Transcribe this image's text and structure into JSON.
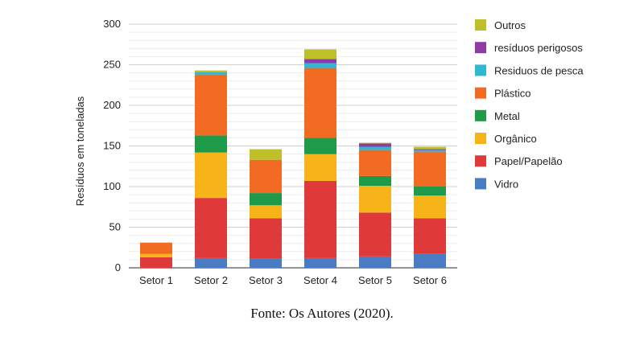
{
  "chart_data": {
    "type": "bar",
    "stacked": true,
    "categories": [
      "Setor 1",
      "Setor 2",
      "Setor 3",
      "Setor 4",
      "Setor 5",
      "Setor 6"
    ],
    "ylabel": "Resíduos em toneladas",
    "xlabel": "",
    "ylim": [
      0,
      300
    ],
    "yticks": [
      0,
      50,
      100,
      150,
      200,
      250,
      300
    ],
    "grid": true,
    "legend_position": "right",
    "series": [
      {
        "name": "Vidro",
        "color": "#4a7cc4",
        "values": [
          0,
          12,
          11,
          12,
          14,
          17
        ]
      },
      {
        "name": "Papel/Papelão",
        "color": "#e0393a",
        "values": [
          13,
          74,
          50,
          95,
          54,
          44
        ]
      },
      {
        "name": "Orgânico",
        "color": "#f7b419",
        "values": [
          4,
          56,
          16,
          33,
          33,
          28
        ]
      },
      {
        "name": "Metal",
        "color": "#1e9a48",
        "values": [
          0,
          21,
          15,
          20,
          12,
          11
        ]
      },
      {
        "name": "Plástico",
        "color": "#f26b22",
        "values": [
          14,
          75,
          41,
          86,
          32,
          43
        ]
      },
      {
        "name": "Residuos de pesca",
        "color": "#2fb8d4",
        "values": [
          0,
          3,
          0,
          6,
          4,
          2
        ]
      },
      {
        "name": "resíduos perigosos",
        "color": "#8e3ba8",
        "values": [
          0,
          0,
          0,
          5,
          4,
          1
        ]
      },
      {
        "name": "Outros",
        "color": "#bfbf2a",
        "values": [
          0,
          2,
          13,
          12,
          1,
          3
        ]
      }
    ]
  },
  "source": "Fonte: Os Autores (2020)."
}
